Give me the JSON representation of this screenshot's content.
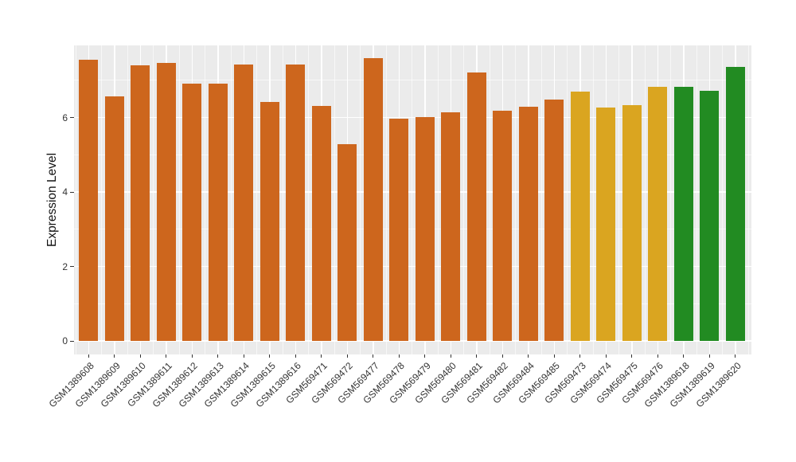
{
  "chart_data": {
    "type": "bar",
    "ylabel": "Expression Level",
    "yticks": [
      0,
      2,
      4,
      6
    ],
    "yminor": [
      1,
      3,
      5,
      7
    ],
    "ylim": [
      0,
      7.94
    ],
    "grid": "white major and minor gridlines on gray panel, ggplot style",
    "legend": "none",
    "categories": [
      "GSM1389608",
      "GSM1389609",
      "GSM1389610",
      "GSM1389611",
      "GSM1389612",
      "GSM1389613",
      "GSM1389614",
      "GSM1389615",
      "GSM1389616",
      "GSM569471",
      "GSM569472",
      "GSM569477",
      "GSM569478",
      "GSM569479",
      "GSM569480",
      "GSM569481",
      "GSM569482",
      "GSM569484",
      "GSM569485",
      "GSM569473",
      "GSM569474",
      "GSM569475",
      "GSM569476",
      "GSM1389618",
      "GSM1389619",
      "GSM1389620"
    ],
    "values": [
      7.56,
      6.56,
      7.41,
      7.46,
      6.92,
      6.92,
      7.42,
      6.42,
      7.42,
      6.32,
      5.29,
      7.59,
      5.98,
      6.01,
      6.14,
      7.22,
      6.18,
      6.29,
      6.49,
      6.7,
      6.27,
      6.34,
      6.83,
      6.83,
      6.72,
      7.37
    ],
    "bar_color_keys": [
      "orange",
      "orange",
      "orange",
      "orange",
      "orange",
      "orange",
      "orange",
      "orange",
      "orange",
      "orange",
      "orange",
      "orange",
      "orange",
      "orange",
      "orange",
      "orange",
      "orange",
      "orange",
      "orange",
      "gold",
      "gold",
      "gold",
      "gold",
      "green",
      "green",
      "green"
    ],
    "palette": {
      "orange": "#CD661D",
      "gold": "#DAA520",
      "green": "#228B22"
    }
  },
  "colors": {
    "panel_background": "#EBEBEB",
    "gridline": "#FFFFFF",
    "axis_text": "#333333",
    "axis_title": "#111111",
    "figure_background": "#FFFFFF"
  }
}
